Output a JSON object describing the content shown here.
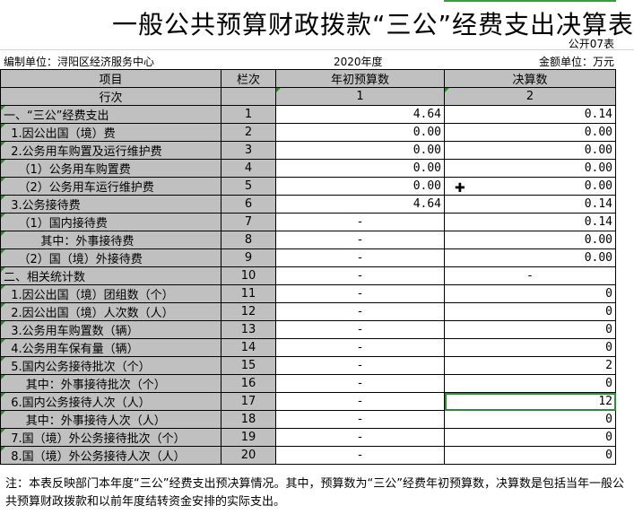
{
  "title": "一般公共预算财政拨款“三公”经费支出决算表",
  "table_code": "公开07表",
  "unit_label": "编制单位：浔阳区经济服务中心",
  "year": "2020年度",
  "currency_unit": "金额单位：万元",
  "headers": {
    "item": "项目",
    "col": "栏次",
    "budget": "年初预算数",
    "actual": "决算数"
  },
  "subheader": {
    "item": "行次",
    "budget": "1",
    "actual": "2"
  },
  "rows": [
    {
      "item": "一、“三公”经费支出",
      "no": "1",
      "budget": "4.64",
      "actual": "0.14"
    },
    {
      "item": "  1.因公出国（境）费",
      "no": "2",
      "budget": "0.00",
      "actual": "0.00"
    },
    {
      "item": "  2.公务用车购置及运行维护费",
      "no": "3",
      "budget": "0.00",
      "actual": "0.00"
    },
    {
      "item": "    （1）公务用车购置费",
      "no": "4",
      "budget": "0.00",
      "actual": "0.00"
    },
    {
      "item": "    （2）公务用车运行维护费",
      "no": "5",
      "budget": "0.00",
      "actual": "0.00"
    },
    {
      "item": "  3.公务接待费",
      "no": "6",
      "budget": "4.64",
      "actual": "0.14"
    },
    {
      "item": "    （1）国内接待费",
      "no": "7",
      "budget": "-",
      "actual": "0.14"
    },
    {
      "item": "          其中：外事接待费",
      "no": "8",
      "budget": "-",
      "actual": "0.00"
    },
    {
      "item": "    （2）国（境）外接待费",
      "no": "9",
      "budget": "-",
      "actual": "0.00"
    },
    {
      "item": "二、相关统计数",
      "no": "10",
      "budget": "-",
      "actual": "-"
    },
    {
      "item": "  1.因公出国（境）团组数（个）",
      "no": "11",
      "budget": "-",
      "actual": "0"
    },
    {
      "item": "  2.因公出国（境）人次数（人）",
      "no": "12",
      "budget": "-",
      "actual": "0"
    },
    {
      "item": "  3.公务用车购置数（辆）",
      "no": "13",
      "budget": "-",
      "actual": "0"
    },
    {
      "item": "  4.公务用车保有量（辆）",
      "no": "14",
      "budget": "-",
      "actual": "0"
    },
    {
      "item": "  5.国内公务接待批次（个）",
      "no": "15",
      "budget": "-",
      "actual": "2"
    },
    {
      "item": "      其中：外事接待批次（个）",
      "no": "16",
      "budget": "-",
      "actual": "0"
    },
    {
      "item": "  6.国内公务接待人次（人）",
      "no": "17",
      "budget": "-",
      "actual": "12"
    },
    {
      "item": "      其中：外事接待人次（人）",
      "no": "18",
      "budget": "-",
      "actual": "0"
    },
    {
      "item": "  7.国（境）外公务接待批次（个）",
      "no": "19",
      "budget": "-",
      "actual": "0"
    },
    {
      "item": "  8.国（境）外公务接待人次（人）",
      "no": "20",
      "budget": "-",
      "actual": "0"
    }
  ],
  "note": "注：本表反映部门本年度“三公”经费支出预决算情况。其中，预算数为“三公”经费年初预算数，决算数是包括当年一般公共预算财政拨款和以前年度结转资金安排的实际支出。",
  "colors": {
    "header_bg": "#c0c0c0",
    "selection": "#2e8b3e"
  }
}
